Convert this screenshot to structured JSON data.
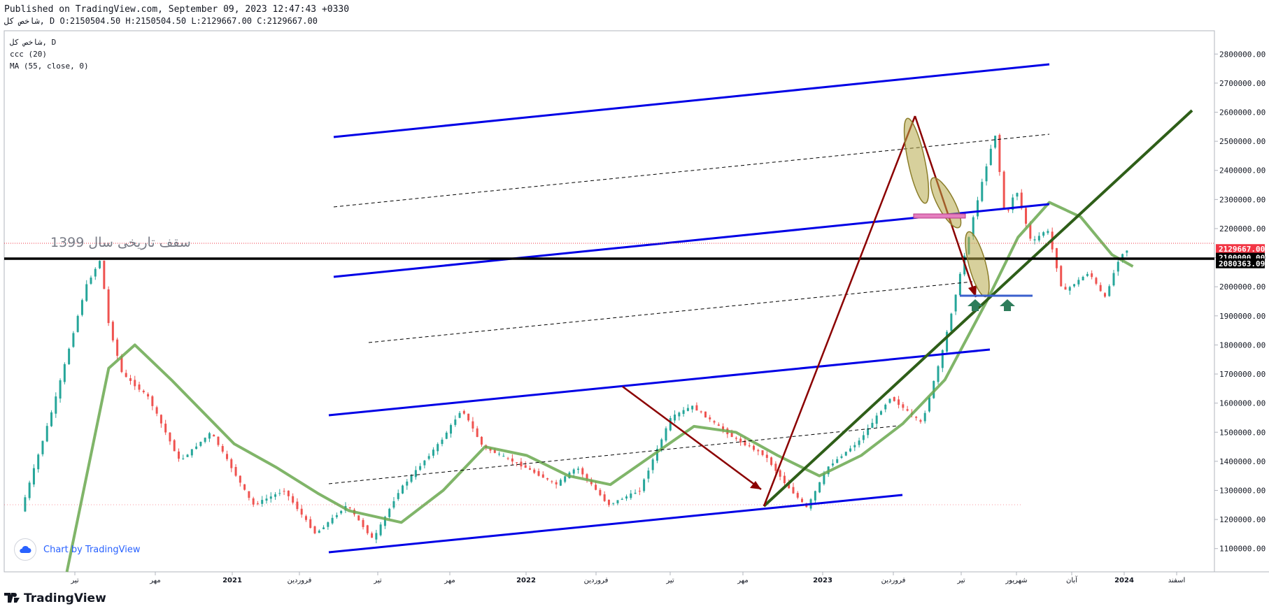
{
  "header": {
    "published": "Published on TradingView.com, September 09, 2023 12:47:43 +0330",
    "ohlc_line": "شاخص کل, D O:2150504.50 H:2150504.50 L:2129667.00 C:2129667.00"
  },
  "legend": {
    "symbol": "شاخص کل, D",
    "indicator1": "ccc (20)",
    "indicator2": "MA (55, close, 0)"
  },
  "annotation_text": "سقف تاریخی سال 1399",
  "watermark": "Chart by TradingView",
  "brand": "TradingView",
  "colors": {
    "candle_up": "#26a69a",
    "candle_down": "#ef5350",
    "channel": "#0000e6",
    "trendline": "#2e5e18",
    "arrow": "#8b0000",
    "ma": "#6aa84f",
    "horizontal": "#000000",
    "last_price": "#f23645"
  },
  "chart_data": {
    "type": "candlestick",
    "title": "شاخص کل, D",
    "ylim": [
      1020000,
      2880000
    ],
    "y_ticks": [
      1100000,
      1200000,
      1300000,
      1400000,
      1500000,
      1600000,
      1700000,
      1800000,
      1900000,
      2000000,
      2100000,
      2200000,
      2300000,
      2400000,
      2500000,
      2600000,
      2700000,
      2800000
    ],
    "y_tick_labels": [
      "1100000.00",
      "1200000.00",
      "1300000.00",
      "1400000.00",
      "1500000.00",
      "1600000.00",
      "1700000.00",
      "1800000.00",
      "1900000.00",
      "2000000.00",
      "2100000.00",
      "2200000.00",
      "2300000.00",
      "2400000.00",
      "2500000.00",
      "2600000.00",
      "2700000.00",
      "2800000.00"
    ],
    "x_ticks": [
      "تیر",
      "مهر",
      "2021",
      "فروردین",
      "تیر",
      "مهر",
      "2022",
      "فروردین",
      "تیر",
      "مهر",
      "2023",
      "فروردین",
      "تیر",
      "شهریور",
      "آبان",
      "2024",
      "اسفند"
    ],
    "price_labels": [
      {
        "value": 2129667.0,
        "text": "2129667.00"
      },
      {
        "value": 2100000.0,
        "text": "2100000.00"
      },
      {
        "value": 2080363.09,
        "text": "2080363.09"
      }
    ],
    "price_path": [
      [
        0.0,
        1020000
      ],
      [
        0.05,
        1600000
      ],
      [
        0.08,
        2000000
      ],
      [
        0.095,
        2100000
      ],
      [
        0.1,
        1900000
      ],
      [
        0.115,
        1700000
      ],
      [
        0.14,
        1620000
      ],
      [
        0.17,
        1400000
      ],
      [
        0.2,
        1500000
      ],
      [
        0.24,
        1250000
      ],
      [
        0.27,
        1300000
      ],
      [
        0.3,
        1150000
      ],
      [
        0.33,
        1250000
      ],
      [
        0.355,
        1130000
      ],
      [
        0.38,
        1300000
      ],
      [
        0.42,
        1470000
      ],
      [
        0.44,
        1580000
      ],
      [
        0.46,
        1450000
      ],
      [
        0.5,
        1380000
      ],
      [
        0.53,
        1320000
      ],
      [
        0.55,
        1380000
      ],
      [
        0.58,
        1250000
      ],
      [
        0.61,
        1300000
      ],
      [
        0.64,
        1550000
      ],
      [
        0.66,
        1590000
      ],
      [
        0.7,
        1480000
      ],
      [
        0.73,
        1420000
      ],
      [
        0.75,
        1320000
      ],
      [
        0.77,
        1240000
      ],
      [
        0.79,
        1380000
      ],
      [
        0.82,
        1470000
      ],
      [
        0.85,
        1620000
      ],
      [
        0.88,
        1530000
      ],
      [
        0.9,
        1780000
      ],
      [
        0.93,
        2250000
      ],
      [
        0.95,
        2530000
      ],
      [
        0.96,
        2230000
      ],
      [
        0.97,
        2340000
      ],
      [
        0.985,
        2150000
      ],
      [
        1.0,
        2200000
      ],
      [
        1.015,
        1980000
      ],
      [
        1.04,
        2050000
      ],
      [
        1.055,
        1960000
      ],
      [
        1.07,
        2110000
      ],
      [
        1.078,
        2129667
      ]
    ],
    "ma_path": [
      [
        0.06,
        1020000
      ],
      [
        0.1,
        1720000
      ],
      [
        0.125,
        1800000
      ],
      [
        0.16,
        1680000
      ],
      [
        0.22,
        1460000
      ],
      [
        0.26,
        1380000
      ],
      [
        0.3,
        1290000
      ],
      [
        0.33,
        1230000
      ],
      [
        0.38,
        1190000
      ],
      [
        0.42,
        1300000
      ],
      [
        0.46,
        1450000
      ],
      [
        0.5,
        1420000
      ],
      [
        0.54,
        1350000
      ],
      [
        0.58,
        1320000
      ],
      [
        0.62,
        1420000
      ],
      [
        0.66,
        1520000
      ],
      [
        0.7,
        1500000
      ],
      [
        0.74,
        1420000
      ],
      [
        0.78,
        1350000
      ],
      [
        0.82,
        1420000
      ],
      [
        0.86,
        1530000
      ],
      [
        0.9,
        1680000
      ],
      [
        0.94,
        1950000
      ],
      [
        0.97,
        2170000
      ],
      [
        1.0,
        2290000
      ],
      [
        1.03,
        2240000
      ],
      [
        1.06,
        2110000
      ],
      [
        1.08,
        2070000
      ]
    ]
  }
}
